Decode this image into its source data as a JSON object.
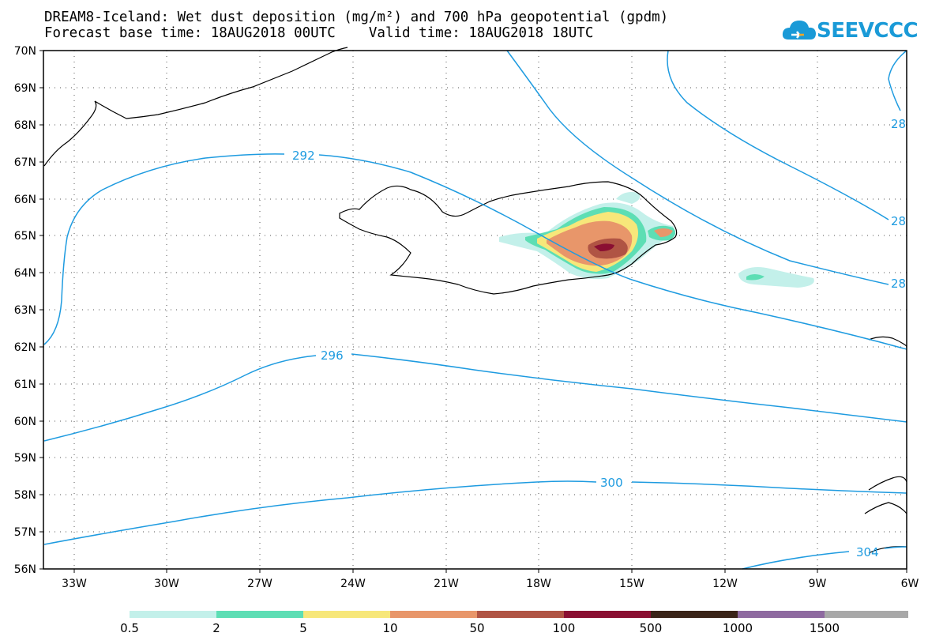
{
  "title": {
    "line1": "DREAM8-Iceland: Wet dust deposition (mg/m²) and 700 hPa geopotential (gpdm)",
    "line2": "Forecast base time: 18AUG2018 00UTC    Valid time: 18AUG2018 18UTC"
  },
  "logo": {
    "text": "SEEVCCC",
    "icon": "cloud-logo-icon",
    "color": "#1a9ad7"
  },
  "map": {
    "lat_labels": [
      "70N",
      "69N",
      "68N",
      "67N",
      "66N",
      "65N",
      "64N",
      "63N",
      "62N",
      "61N",
      "60N",
      "59N",
      "58N",
      "57N",
      "56N"
    ],
    "lon_labels": [
      "33W",
      "30W",
      "27W",
      "24W",
      "21W",
      "18W",
      "15W",
      "12W",
      "9W",
      "6W"
    ],
    "contour_labels": [
      "292",
      "296",
      "300",
      "304",
      "28",
      "28",
      "28"
    ],
    "contour_color": "#1e9be0"
  },
  "colorbar": {
    "colors": [
      "#c3f0ea",
      "#5ddeb4",
      "#f7e77a",
      "#e8966a",
      "#b05444",
      "#8a0f32",
      "#3a2418",
      "#8e6aa0",
      "#a8a8a8"
    ],
    "labels": [
      "0.5",
      "2",
      "5",
      "10",
      "50",
      "100",
      "500",
      "1000",
      "1500"
    ]
  }
}
